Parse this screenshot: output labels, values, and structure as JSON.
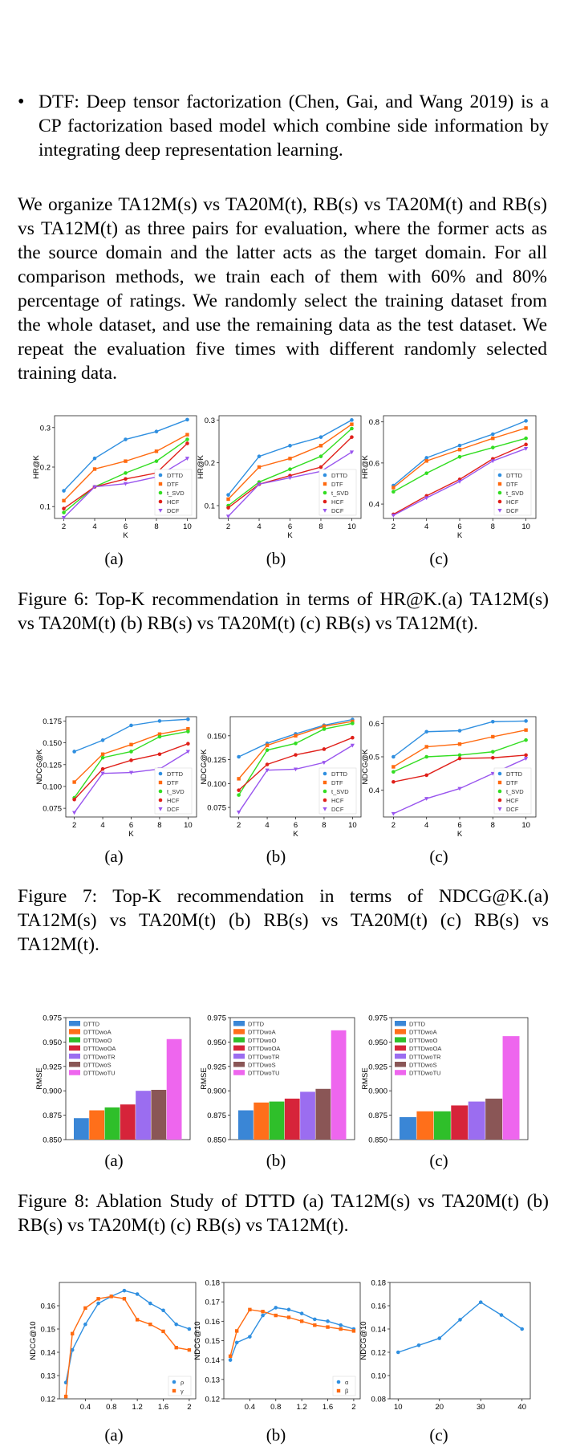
{
  "bullet": {
    "mark": "•",
    "text": "DTF: Deep tensor factorization (Chen, Gai, and Wang 2019) is a CP factorization based model which combine side information by integrating deep representation learning."
  },
  "paragraph": "We organize TA12M(s) vs TA20M(t), RB(s) vs TA20M(t) and RB(s) vs TA12M(t) as three pairs for evaluation, where the former acts as the source domain and the latter acts as the target domain. For all comparison methods, we train each of them with 60% and 80% percentage of ratings. We randomly select the training dataset from the whole dataset, and use the remaining data as the test dataset. We repeat the evaluation five times with different randomly selected training data.",
  "sublabels": [
    "(a)",
    "(b)",
    "(c)"
  ],
  "captions": {
    "fig6": "Figure 6: Top-K recommendation in terms of HR@K.(a) TA12M(s) vs TA20M(t) (b) RB(s) vs TA20M(t) (c) RB(s) vs TA12M(t).",
    "fig7": "Figure 7: Top-K recommendation in terms of NDCG@K.(a) TA12M(s) vs TA20M(t) (b) RB(s) vs TA20M(t) (c) RB(s) vs TA12M(t).",
    "fig8": "Figure 8: Ablation Study of DTTD (a) TA12M(s) vs TA20M(t) (b) RB(s) vs TA20M(t) (c) RB(s) vs TA12M(t)."
  },
  "colors": {
    "DTTD": "#1f77b4",
    "DTF": "#ff7f0e",
    "t_SVD": "#2ca02c",
    "HCF": "#d62728",
    "DCF": "#9467bd",
    "line_blue": "#2f8fe0",
    "line_orange": "#ff6a10",
    "line_green": "#33dd22",
    "line_red": "#e0201a",
    "line_purple": "#9955ee",
    "bar_colors": [
      "#3a86d6",
      "#ff6f1a",
      "#2fbf2a",
      "#d6243a",
      "#9b6df0",
      "#8a5656",
      "#ee66ee"
    ]
  },
  "chart_data": [
    {
      "id": "fig6a",
      "type": "line",
      "title": "",
      "xlabel": "K",
      "ylabel": "HR@K",
      "x": [
        2,
        4,
        6,
        8,
        10
      ],
      "ylim": [
        0.07,
        0.33
      ],
      "yticks": [
        0.1,
        0.2,
        0.3
      ],
      "ytick_labels": [
        "0.1",
        "0.2",
        "0.3"
      ],
      "xticks": [
        2,
        4,
        6,
        8,
        10
      ],
      "xtick_labels": [
        "2",
        "4",
        "6",
        "8",
        "10"
      ],
      "legend": "lower-right",
      "series": [
        {
          "name": "DTTD",
          "values": [
            0.14,
            0.222,
            0.27,
            0.29,
            0.32
          ]
        },
        {
          "name": "DTF",
          "values": [
            0.115,
            0.195,
            0.215,
            0.24,
            0.282
          ]
        },
        {
          "name": "t_SVD",
          "values": [
            0.085,
            0.15,
            0.185,
            0.215,
            0.27
          ]
        },
        {
          "name": "HCF",
          "values": [
            0.095,
            0.15,
            0.17,
            0.185,
            0.26
          ]
        },
        {
          "name": "DCF",
          "values": [
            0.072,
            0.15,
            0.158,
            0.175,
            0.222
          ]
        }
      ]
    },
    {
      "id": "fig6b",
      "type": "line",
      "title": "",
      "xlabel": "K",
      "ylabel": "HR@K",
      "x": [
        2,
        4,
        6,
        8,
        10
      ],
      "ylim": [
        0.07,
        0.31
      ],
      "yticks": [
        0.1,
        0.2,
        0.3
      ],
      "ytick_labels": [
        "0.1",
        "0.2",
        "0.3"
      ],
      "xticks": [
        2,
        4,
        6,
        8,
        10
      ],
      "xtick_labels": [
        "2",
        "4",
        "6",
        "8",
        "10"
      ],
      "legend": "lower-right",
      "series": [
        {
          "name": "DTTD",
          "values": [
            0.125,
            0.215,
            0.24,
            0.26,
            0.3
          ]
        },
        {
          "name": "DTF",
          "values": [
            0.115,
            0.19,
            0.21,
            0.24,
            0.29
          ]
        },
        {
          "name": "t_SVD",
          "values": [
            0.1,
            0.155,
            0.185,
            0.215,
            0.28
          ]
        },
        {
          "name": "HCF",
          "values": [
            0.095,
            0.15,
            0.17,
            0.19,
            0.26
          ]
        },
        {
          "name": "DCF",
          "values": [
            0.075,
            0.15,
            0.165,
            0.18,
            0.225
          ]
        }
      ]
    },
    {
      "id": "fig6c",
      "type": "line",
      "title": "",
      "xlabel": "K",
      "ylabel": "HR@K",
      "x": [
        2,
        4,
        6,
        8,
        10
      ],
      "ylim": [
        0.33,
        0.83
      ],
      "yticks": [
        0.4,
        0.6,
        0.8
      ],
      "ytick_labels": [
        "0.4",
        "0.6",
        "0.8"
      ],
      "xticks": [
        2,
        4,
        6,
        8,
        10
      ],
      "xtick_labels": [
        "2",
        "4",
        "6",
        "8",
        "10"
      ],
      "legend": "lower-right",
      "series": [
        {
          "name": "DTTD",
          "values": [
            0.49,
            0.625,
            0.685,
            0.74,
            0.805
          ]
        },
        {
          "name": "DTF",
          "values": [
            0.48,
            0.61,
            0.665,
            0.72,
            0.77
          ]
        },
        {
          "name": "t_SVD",
          "values": [
            0.46,
            0.55,
            0.63,
            0.675,
            0.72
          ]
        },
        {
          "name": "HCF",
          "values": [
            0.35,
            0.44,
            0.52,
            0.62,
            0.69
          ]
        },
        {
          "name": "DCF",
          "values": [
            0.345,
            0.43,
            0.51,
            0.61,
            0.67
          ]
        }
      ]
    },
    {
      "id": "fig7a",
      "type": "line",
      "title": "",
      "xlabel": "K",
      "ylabel": "NDCG@K",
      "x": [
        2,
        4,
        6,
        8,
        10
      ],
      "ylim": [
        0.065,
        0.18
      ],
      "yticks": [
        0.075,
        0.1,
        0.125,
        0.15,
        0.175
      ],
      "ytick_labels": [
        "0.075",
        "0.100",
        "0.125",
        "0.150",
        "0.175"
      ],
      "xticks": [
        2,
        4,
        6,
        8,
        10
      ],
      "xtick_labels": [
        "2",
        "4",
        "6",
        "8",
        "10"
      ],
      "legend": "lower-right",
      "series": [
        {
          "name": "DTTD",
          "values": [
            0.14,
            0.153,
            0.17,
            0.175,
            0.177
          ]
        },
        {
          "name": "DTF",
          "values": [
            0.105,
            0.137,
            0.148,
            0.16,
            0.166
          ]
        },
        {
          "name": "t_SVD",
          "values": [
            0.087,
            0.133,
            0.14,
            0.157,
            0.163
          ]
        },
        {
          "name": "HCF",
          "values": [
            0.085,
            0.12,
            0.13,
            0.137,
            0.149
          ]
        },
        {
          "name": "DCF",
          "values": [
            0.07,
            0.115,
            0.116,
            0.12,
            0.14
          ]
        }
      ]
    },
    {
      "id": "fig7b",
      "type": "line",
      "title": "",
      "xlabel": "K",
      "ylabel": "NDCG@K",
      "x": [
        2,
        4,
        6,
        8,
        10
      ],
      "ylim": [
        0.065,
        0.17
      ],
      "yticks": [
        0.075,
        0.1,
        0.125,
        0.15
      ],
      "ytick_labels": [
        "0.075",
        "0.100",
        "0.125",
        "0.150"
      ],
      "xticks": [
        2,
        4,
        6,
        8,
        10
      ],
      "xtick_labels": [
        "2",
        "4",
        "6",
        "8",
        "10"
      ],
      "legend": "lower-right",
      "series": [
        {
          "name": "DTTD",
          "values": [
            0.128,
            0.142,
            0.152,
            0.161,
            0.167
          ]
        },
        {
          "name": "DTF",
          "values": [
            0.105,
            0.14,
            0.15,
            0.16,
            0.165
          ]
        },
        {
          "name": "t_SVD",
          "values": [
            0.088,
            0.135,
            0.142,
            0.157,
            0.163
          ]
        },
        {
          "name": "HCF",
          "values": [
            0.093,
            0.12,
            0.13,
            0.136,
            0.148
          ]
        },
        {
          "name": "DCF",
          "values": [
            0.07,
            0.114,
            0.115,
            0.122,
            0.14
          ]
        }
      ]
    },
    {
      "id": "fig7c",
      "type": "line",
      "title": "",
      "xlabel": "K",
      "ylabel": "NDCG@K",
      "x": [
        2,
        4,
        6,
        8,
        10
      ],
      "ylim": [
        0.32,
        0.62
      ],
      "yticks": [
        0.4,
        0.5,
        0.6
      ],
      "ytick_labels": [
        "0.4",
        "0.5",
        "0.6"
      ],
      "xticks": [
        2,
        4,
        6,
        8,
        10
      ],
      "xtick_labels": [
        "2",
        "4",
        "6",
        "8",
        "10"
      ],
      "legend": "lower-right",
      "series": [
        {
          "name": "DTTD",
          "values": [
            0.5,
            0.575,
            0.578,
            0.605,
            0.607
          ]
        },
        {
          "name": "DTF",
          "values": [
            0.47,
            0.53,
            0.538,
            0.56,
            0.58
          ]
        },
        {
          "name": "t_SVD",
          "values": [
            0.455,
            0.5,
            0.505,
            0.515,
            0.55
          ]
        },
        {
          "name": "HCF",
          "values": [
            0.425,
            0.445,
            0.495,
            0.497,
            0.505
          ]
        },
        {
          "name": "DCF",
          "values": [
            0.33,
            0.375,
            0.405,
            0.45,
            0.495
          ]
        }
      ]
    },
    {
      "id": "fig8a",
      "type": "bar",
      "title": "",
      "xlabel": "",
      "ylabel": "RMSE",
      "categories": [
        "DTTD",
        "DTTDwoA",
        "DTTDwoO",
        "DTTDwoOA",
        "DTTDwoTR",
        "DTTDwoS",
        "DTTDwoTU"
      ],
      "values": [
        0.872,
        0.88,
        0.883,
        0.886,
        0.9,
        0.901,
        0.953
      ],
      "ylim": [
        0.85,
        0.975
      ],
      "yticks": [
        0.85,
        0.875,
        0.9,
        0.925,
        0.95,
        0.975
      ],
      "ytick_labels": [
        "0.850",
        "0.875",
        "0.900",
        "0.925",
        "0.950",
        "0.975"
      ],
      "legend": "top-left"
    },
    {
      "id": "fig8b",
      "type": "bar",
      "title": "",
      "xlabel": "",
      "ylabel": "RMSE",
      "categories": [
        "DTTD",
        "DTTDwoA",
        "DTTDwoO",
        "DTTDwoOA",
        "DTTDwoTR",
        "DTTDwoS",
        "DTTDwoTU"
      ],
      "values": [
        0.88,
        0.888,
        0.889,
        0.892,
        0.899,
        0.902,
        0.962
      ],
      "ylim": [
        0.85,
        0.975
      ],
      "yticks": [
        0.85,
        0.875,
        0.9,
        0.925,
        0.95,
        0.975
      ],
      "ytick_labels": [
        "0.850",
        "0.875",
        "0.900",
        "0.925",
        "0.950",
        "0.975"
      ],
      "legend": "top-left"
    },
    {
      "id": "fig8c",
      "type": "bar",
      "title": "",
      "xlabel": "",
      "ylabel": "RMSE",
      "categories": [
        "DTTD",
        "DTTDwoA",
        "DTTDwoO",
        "DTTDwoOA",
        "DTTDwoTR",
        "DTTDwoS",
        "DTTDwoTU"
      ],
      "values": [
        0.873,
        0.879,
        0.879,
        0.885,
        0.889,
        0.892,
        0.956
      ],
      "ylim": [
        0.85,
        0.975
      ],
      "yticks": [
        0.85,
        0.875,
        0.9,
        0.925,
        0.95,
        0.975
      ],
      "ytick_labels": [
        "0.850",
        "0.875",
        "0.900",
        "0.925",
        "0.950",
        "0.975"
      ],
      "legend": "top-left"
    },
    {
      "id": "fig9a",
      "type": "line",
      "title": "",
      "xlabel": "",
      "ylabel": "NDCG@10",
      "x": [
        0.1,
        0.2,
        0.4,
        0.6,
        0.8,
        1.0,
        1.2,
        1.4,
        1.6,
        1.8,
        2.0
      ],
      "xlim": [
        0.0,
        2.1
      ],
      "ylim": [
        0.12,
        0.17
      ],
      "yticks": [
        0.12,
        0.13,
        0.14,
        0.15,
        0.16
      ],
      "ytick_labels": [
        "0.12",
        "0.13",
        "0.14",
        "0.15",
        "0.16"
      ],
      "xticks": [
        0.4,
        0.8,
        1.2,
        1.6,
        2.0
      ],
      "xtick_labels": [
        "0.4",
        "0.8",
        "1.2",
        "1.6",
        "2"
      ],
      "legend": "lower-right",
      "series": [
        {
          "name": "ρ",
          "values": [
            0.127,
            0.141,
            0.152,
            0.161,
            0.164,
            0.1665,
            0.165,
            0.161,
            0.158,
            0.152,
            0.15
          ]
        },
        {
          "name": "γ",
          "values": [
            0.121,
            0.148,
            0.159,
            0.163,
            0.164,
            0.163,
            0.154,
            0.152,
            0.149,
            0.142,
            0.141
          ]
        }
      ]
    },
    {
      "id": "fig9b",
      "type": "line",
      "title": "",
      "xlabel": "",
      "ylabel": "NDCG@10",
      "x": [
        0.1,
        0.2,
        0.4,
        0.6,
        0.8,
        1.0,
        1.2,
        1.4,
        1.6,
        1.8,
        2.0
      ],
      "xlim": [
        0.0,
        2.1
      ],
      "ylim": [
        0.12,
        0.18
      ],
      "yticks": [
        0.12,
        0.13,
        0.14,
        0.15,
        0.16,
        0.17,
        0.18
      ],
      "ytick_labels": [
        "0.12",
        "0.13",
        "0.14",
        "0.15",
        "0.16",
        "0.17",
        "0.18"
      ],
      "xticks": [
        0.4,
        0.8,
        1.2,
        1.6,
        2.0
      ],
      "xtick_labels": [
        "0.4",
        "0.8",
        "1.2",
        "1.6",
        "2"
      ],
      "legend": "lower-right",
      "series": [
        {
          "name": "α",
          "values": [
            0.14,
            0.149,
            0.152,
            0.163,
            0.167,
            0.166,
            0.164,
            0.161,
            0.16,
            0.158,
            0.156
          ]
        },
        {
          "name": "β",
          "values": [
            0.142,
            0.155,
            0.166,
            0.165,
            0.163,
            0.162,
            0.16,
            0.158,
            0.157,
            0.156,
            0.155
          ]
        }
      ]
    },
    {
      "id": "fig9c",
      "type": "line",
      "title": "",
      "xlabel": "",
      "ylabel": "NDCG@10",
      "x": [
        10,
        15,
        20,
        25,
        30,
        35,
        40
      ],
      "xlim": [
        8,
        42
      ],
      "ylim": [
        0.08,
        0.18
      ],
      "yticks": [
        0.08,
        0.1,
        0.12,
        0.14,
        0.16,
        0.18
      ],
      "ytick_labels": [
        "0.08",
        "0.10",
        "0.12",
        "0.14",
        "0.16",
        "0.18"
      ],
      "xticks": [
        10,
        20,
        30,
        40
      ],
      "xtick_labels": [
        "10",
        "20",
        "30",
        "40"
      ],
      "legend": "none",
      "series": [
        {
          "name": "",
          "values": [
            0.12,
            0.126,
            0.132,
            0.148,
            0.163,
            0.152,
            0.14
          ]
        }
      ]
    }
  ]
}
